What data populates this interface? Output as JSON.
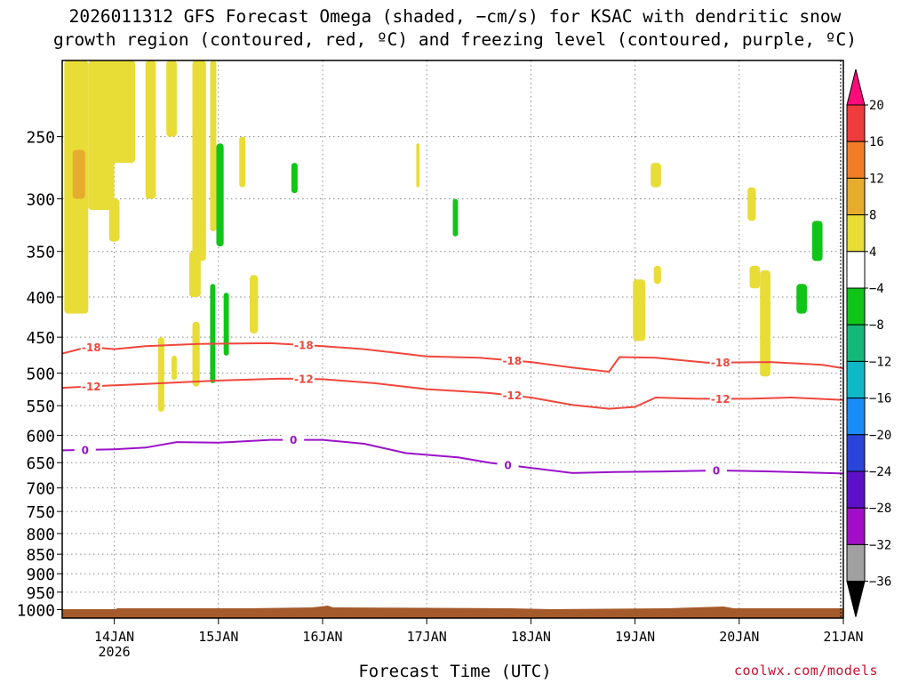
{
  "title": {
    "line1": "2026011312 GFS Forecast Omega (shaded, −cm/s) for KSAC with dendritic snow",
    "line2": "growth region (contoured, red, ºC) and freezing level (contoured, purple, ºC)"
  },
  "credit": "coolwx.com/models",
  "chart_data": {
    "type": "heatmap",
    "title": "2026011312 GFS Forecast Omega (shaded, −cm/s) for KSAC with dendritic snow growth region (contoured, red, ºC) and freezing level (contoured, purple, ºC)",
    "xlabel": "Forecast Time (UTC)",
    "ylabel": "",
    "x_range_days": [
      13.5,
      21.0
    ],
    "x_ticks": [
      {
        "day": 14,
        "label": "14JAN",
        "sublabel": "2026"
      },
      {
        "day": 15,
        "label": "15JAN",
        "sublabel": ""
      },
      {
        "day": 16,
        "label": "16JAN",
        "sublabel": ""
      },
      {
        "day": 17,
        "label": "17JAN",
        "sublabel": ""
      },
      {
        "day": 18,
        "label": "18JAN",
        "sublabel": ""
      },
      {
        "day": 19,
        "label": "19JAN",
        "sublabel": ""
      },
      {
        "day": 20,
        "label": "20JAN",
        "sublabel": ""
      },
      {
        "day": 21,
        "label": "21JAN",
        "sublabel": ""
      }
    ],
    "y_axis": {
      "scale": "log-pressure",
      "range_hPa": [
        1025,
        200
      ],
      "inverted": true
    },
    "y_ticks": [
      250,
      300,
      350,
      400,
      450,
      500,
      550,
      600,
      650,
      700,
      750,
      800,
      850,
      900,
      950,
      1000
    ],
    "grid": true,
    "colorbar": {
      "labels": [
        "20",
        "16",
        "12",
        "8",
        "4",
        "−4",
        "−8",
        "−12",
        "−16",
        "−20",
        "−24",
        "−28",
        "−32",
        "−36"
      ],
      "colors": [
        "#ff0a7a",
        "#ee3c3c",
        "#ef7e27",
        "#e6ac2e",
        "#e8dc37",
        "#ffffff",
        "#10c517",
        "#17b77a",
        "#10b7c7",
        "#1a8cf5",
        "#2a43d8",
        "#5c11c9",
        "#a00fc6",
        "#a0a0a0",
        "#000000"
      ]
    },
    "contours": [
      {
        "label": "-18",
        "color": "#f0463c",
        "points": [
          [
            13.5,
            472
          ],
          [
            13.75,
            463
          ],
          [
            14.0,
            466
          ],
          [
            14.3,
            462
          ],
          [
            14.8,
            459
          ],
          [
            15.5,
            458
          ],
          [
            16.0,
            462
          ],
          [
            16.4,
            466
          ],
          [
            17.0,
            476
          ],
          [
            17.5,
            478
          ],
          [
            18.0,
            484
          ],
          [
            18.4,
            492
          ],
          [
            18.75,
            498
          ],
          [
            18.85,
            477
          ],
          [
            19.2,
            478
          ],
          [
            19.7,
            485
          ],
          [
            20.3,
            484
          ],
          [
            20.8,
            488
          ],
          [
            21.0,
            493
          ]
        ]
      },
      {
        "label": "-12",
        "color": "#f0463c",
        "points": [
          [
            13.5,
            522
          ],
          [
            13.75,
            520
          ],
          [
            14.3,
            516
          ],
          [
            15.0,
            511
          ],
          [
            15.6,
            508
          ],
          [
            16.0,
            509
          ],
          [
            16.5,
            515
          ],
          [
            17.0,
            524
          ],
          [
            17.6,
            530
          ],
          [
            18.0,
            537
          ],
          [
            18.4,
            549
          ],
          [
            18.75,
            555
          ],
          [
            19.0,
            552
          ],
          [
            19.2,
            537
          ],
          [
            19.6,
            539
          ],
          [
            20.1,
            539
          ],
          [
            20.5,
            537
          ],
          [
            21.0,
            541
          ]
        ]
      },
      {
        "label": "0",
        "color": "#9a12c8",
        "points": [
          [
            13.5,
            627
          ],
          [
            14.0,
            625
          ],
          [
            14.3,
            622
          ],
          [
            14.6,
            612
          ],
          [
            15.0,
            613
          ],
          [
            15.5,
            608
          ],
          [
            16.0,
            608
          ],
          [
            16.4,
            615
          ],
          [
            16.8,
            632
          ],
          [
            17.3,
            640
          ],
          [
            17.6,
            650
          ],
          [
            18.0,
            660
          ],
          [
            18.4,
            670
          ],
          [
            18.8,
            668
          ],
          [
            19.3,
            667
          ],
          [
            19.8,
            665
          ],
          [
            20.3,
            667
          ],
          [
            21.0,
            671
          ]
        ]
      }
    ],
    "shading": [
      {
        "value_range": "4 to 8",
        "color": "#e8dc37"
      },
      {
        "value_range": "8 to 12",
        "color": "#e6ac2e"
      },
      {
        "value_range": "-4 to -8",
        "color": "#10c517"
      }
    ],
    "terrain_color": "#a55a2b"
  },
  "colors": {
    "dgz": "#f0463c",
    "freezing": "#9a12c8",
    "terrain": "#a55a2b",
    "credit": "#c8102e"
  }
}
